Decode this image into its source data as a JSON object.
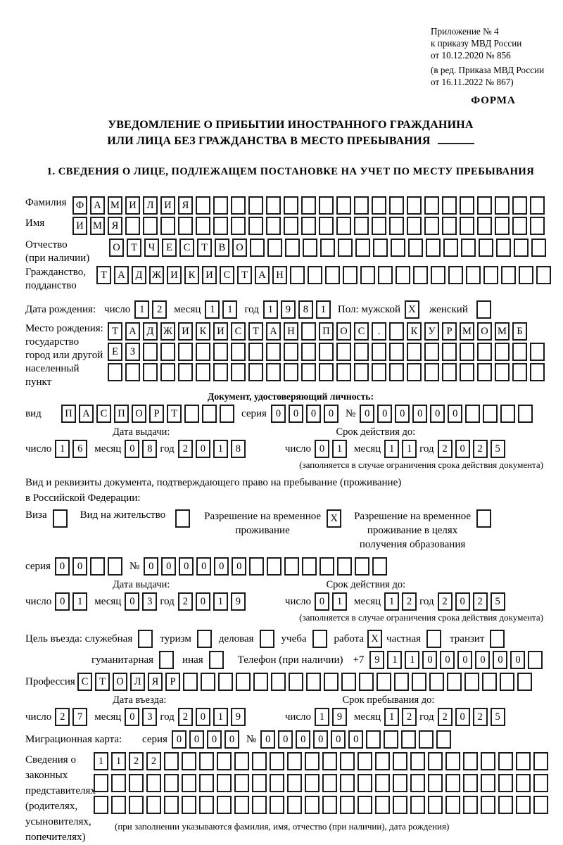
{
  "header": {
    "line1": "Приложение № 4",
    "line2": "к приказу МВД России",
    "line3": "от 10.12.2020 № 856",
    "line4": "(в ред. Приказа МВД России",
    "line5": "от 16.11.2022 № 867)",
    "form_label": "ФОРМА"
  },
  "title": {
    "line1": "УВЕДОМЛЕНИЕ О ПРИБЫТИИ ИНОСТРАННОГО ГРАЖДАНИНА",
    "line2": "ИЛИ ЛИЦА БЕЗ ГРАЖДАНСТВА В МЕСТО ПРЕБЫВАНИЯ"
  },
  "section1": {
    "heading": "1. СВЕДЕНИЯ О ЛИЦЕ, ПОДЛЕЖАЩЕМ ПОСТАНОВКЕ НА УЧЕТ ПО МЕСТУ ПРЕБЫВАНИЯ"
  },
  "labels": {
    "surname": "Фамилия",
    "name": "Имя",
    "patronymic1": "Отчество",
    "patronymic2": "(при наличии)",
    "citizenship1": "Гражданство,",
    "citizenship2": "подданство",
    "birth_date": "Дата рождения:",
    "day": "число",
    "month": "месяц",
    "year": "год",
    "sex_male": "Пол: мужской",
    "sex_female": "женский",
    "birth_place1": "Место рождения:",
    "birth_place2": "государство",
    "birth_place3": "город или другой",
    "birth_place4": "населенный пункт",
    "id_doc_heading": "Документ, удостоверяющий личность:",
    "doc_type": "вид",
    "series": "серия",
    "number_sign": "№",
    "issue_date": "Дата выдачи:",
    "valid_until": "Срок действия до:",
    "valid_note": "(заполняется в случае ограничения срока действия документа)",
    "residence1": "Вид и реквизиты документа, подтверждающего право на пребывание (проживание)",
    "residence2": "в Российской Федерации:",
    "visa": "Виза",
    "residence_permit": "Вид на жительство",
    "temp_residence1": "Разрешение на временное",
    "temp_residence2": "проживание",
    "temp_edu1": "Разрешение на временное",
    "temp_edu2": "проживание в целях",
    "temp_edu3": "получения образования",
    "purpose": "Цель въезда: служебная",
    "tourism": "туризм",
    "business": "деловая",
    "study": "учеба",
    "work": "работа",
    "private": "частная",
    "transit": "транзит",
    "humanitarian": "гуманитарная",
    "other": "иная",
    "phone": "Телефон (при наличии)",
    "phone_prefix": "+7",
    "profession": "Профессия",
    "entry_date": "Дата въезда:",
    "stay_until": "Срок пребывания до:",
    "migration_card": "Миграционная карта:",
    "legal1": "Сведения о",
    "legal2": "законных",
    "legal3": "представителях",
    "legal4": "(родителях,",
    "legal5": "усыновителях,",
    "legal6": "попечителях)",
    "legal_note": "(при заполнении указываются фамилия, имя, отчество (при наличии), дата рождения)"
  },
  "values": {
    "surname": "ФАМИЛИЯ",
    "name": "ИМЯ",
    "patronymic": "ОТЧЕСТВО",
    "citizenship": "ТАДЖИКИСТАН",
    "birth_day": "12",
    "birth_month": "11",
    "birth_year": "1981",
    "sex_male": "X",
    "sex_female": "",
    "birth_place_row1": "ТАДЖИКИСТАН ПОС. КУРМОМБ",
    "birth_place_row2": "ЕЗ",
    "birth_place_row3": "",
    "id_doc_type": "ПАСПОРТ",
    "id_series": "0000",
    "id_number": "000000",
    "id_issue_day": "16",
    "id_issue_month": "08",
    "id_issue_year": "2018",
    "id_valid_day": "01",
    "id_valid_month": "11",
    "id_valid_year": "2025",
    "visa_checked": "",
    "residence_permit_checked": "",
    "temp_residence_checked": "X",
    "temp_edu_checked": "",
    "res_series": "00",
    "res_number": "000000",
    "res_issue_day": "01",
    "res_issue_month": "03",
    "res_issue_year": "2019",
    "res_valid_day": "01",
    "res_valid_month": "12",
    "res_valid_year": "2025",
    "purpose_official": "",
    "purpose_tourism": "",
    "purpose_business": "",
    "purpose_study": "",
    "purpose_work": "X",
    "purpose_private": "",
    "purpose_transit": "",
    "purpose_humanitarian": "",
    "purpose_other": "",
    "phone_number": "911000000",
    "profession": "СТОЛЯР",
    "entry_day": "27",
    "entry_month": "03",
    "entry_year": "2019",
    "stay_day": "19",
    "stay_month": "12",
    "stay_year": "2025",
    "mc_series": "0000",
    "mc_number": "000000",
    "legal_row1": "1122",
    "legal_row2": "",
    "legal_row3": ""
  }
}
